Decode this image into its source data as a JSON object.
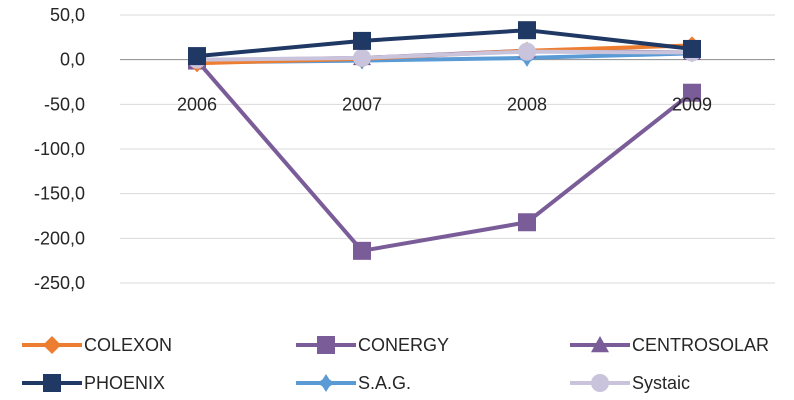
{
  "chart_data": {
    "type": "line",
    "categories": [
      "2006",
      "2007",
      "2008",
      "2009"
    ],
    "ylim": [
      -250,
      50
    ],
    "yticks": [
      50,
      0,
      -50,
      -100,
      -150,
      -200,
      -250
    ],
    "ytick_labels": [
      "50,0",
      "0,0",
      "-50,0",
      "-100,0",
      "-150,0",
      "-200,0",
      "-250,0"
    ],
    "grid": true,
    "legend_position": "bottom",
    "series": [
      {
        "name": "COLEXON",
        "values": [
          -4,
          1,
          10,
          16
        ],
        "color": "#ED7D31",
        "marker": "diamond"
      },
      {
        "name": "CONERGY",
        "values": [
          -1,
          -214,
          -182,
          -37
        ],
        "color": "#7A5C99",
        "marker": "square"
      },
      {
        "name": "CENTROSOLAR",
        "values": [
          -1,
          2,
          10,
          8
        ],
        "color": "#7A5C99",
        "marker": "triangle"
      },
      {
        "name": "PHOENIX",
        "values": [
          4,
          21,
          33,
          12
        ],
        "color": "#1F3864",
        "marker": "square"
      },
      {
        "name": "S.A.G.",
        "values": [
          -3,
          -1,
          2,
          7
        ],
        "color": "#5B9BD5",
        "marker": "star"
      },
      {
        "name": "Systaic",
        "values": [
          0,
          2,
          9,
          8
        ],
        "color": "#C9C3DC",
        "marker": "circle"
      }
    ]
  }
}
